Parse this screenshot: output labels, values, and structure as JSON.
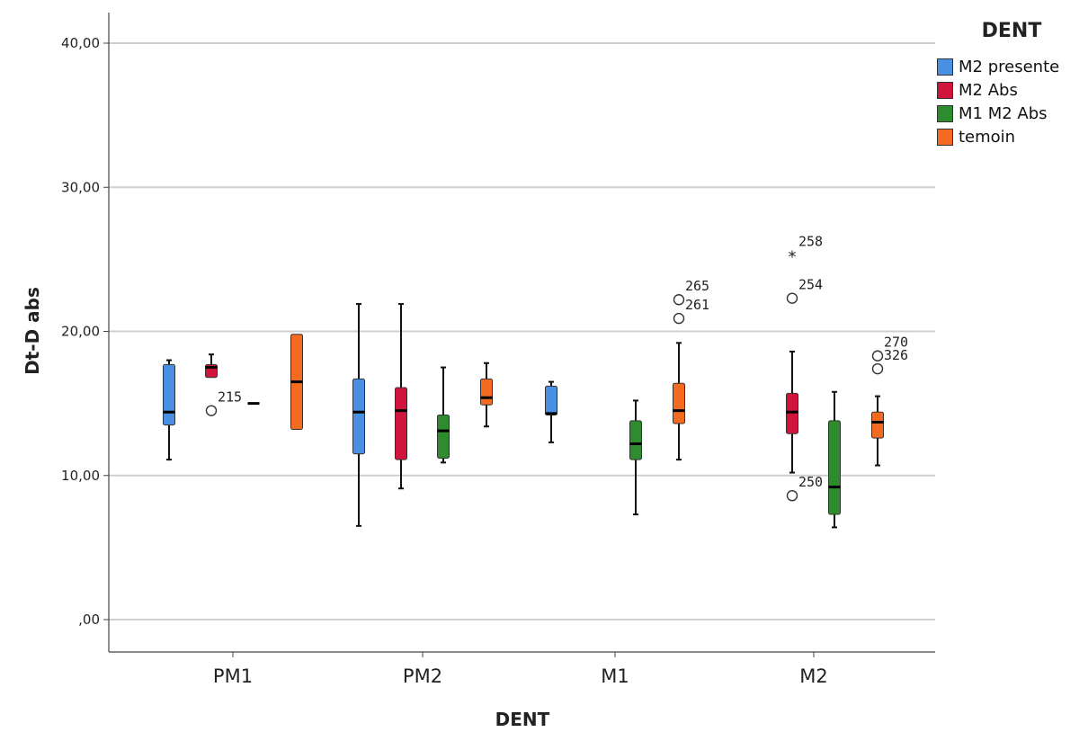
{
  "chart_data": {
    "type": "boxplot",
    "xlabel": "DENT",
    "ylabel": "Dt-D abs",
    "ylim": [
      0,
      40
    ],
    "yticks": [
      {
        "value": 0,
        "label": ",00"
      },
      {
        "value": 10,
        "label": "10,00"
      },
      {
        "value": 20,
        "label": "20,00"
      },
      {
        "value": 30,
        "label": "30,00"
      },
      {
        "value": 40,
        "label": "40,00"
      }
    ],
    "grid": "horizontal",
    "legend_position": "top-right",
    "legend_title": "DENT",
    "categories": [
      "PM1",
      "PM2",
      "M1",
      "M2"
    ],
    "series": [
      {
        "name": "M2 presente",
        "color": "#4A90E2",
        "boxes": [
          {
            "category": "PM1",
            "min": 11.1,
            "q1": 13.5,
            "median": 14.4,
            "q3": 17.7,
            "max": 18.0,
            "outliers": []
          },
          {
            "category": "PM2",
            "min": 6.5,
            "q1": 11.5,
            "median": 14.4,
            "q3": 16.7,
            "max": 21.9,
            "outliers": []
          },
          {
            "category": "M1",
            "min": 12.3,
            "q1": 14.2,
            "median": 14.3,
            "q3": 16.2,
            "max": 16.5,
            "outliers": []
          },
          null
        ]
      },
      {
        "name": "M2 Abs",
        "color": "#D0143C",
        "boxes": [
          {
            "category": "PM1",
            "min": 16.8,
            "q1": 16.8,
            "median": 17.5,
            "q3": 17.7,
            "max": 18.4,
            "outliers": [
              {
                "value": 14.5,
                "label": "215",
                "symbol": "circle"
              }
            ]
          },
          {
            "category": "PM2",
            "min": 9.1,
            "q1": 11.1,
            "median": 14.5,
            "q3": 16.1,
            "max": 21.9,
            "outliers": []
          },
          null,
          {
            "category": "M2",
            "min": 10.2,
            "q1": 12.9,
            "median": 14.4,
            "q3": 15.7,
            "max": 18.6,
            "outliers": [
              {
                "value": 25.3,
                "label": "258",
                "symbol": "star"
              },
              {
                "value": 22.3,
                "label": "254",
                "symbol": "circle"
              },
              {
                "value": 8.6,
                "label": "250",
                "symbol": "circle"
              }
            ]
          }
        ]
      },
      {
        "name": "M1 M2 Abs",
        "color": "#2E8B2E",
        "boxes": [
          {
            "category": "PM1",
            "min": 15.0,
            "q1": 15.0,
            "median": 15.0,
            "q3": 15.0,
            "max": 15.0,
            "outliers": []
          },
          {
            "category": "PM2",
            "min": 10.9,
            "q1": 11.2,
            "median": 13.1,
            "q3": 14.2,
            "max": 17.5,
            "outliers": []
          },
          {
            "category": "M1",
            "min": 7.3,
            "q1": 11.1,
            "median": 12.2,
            "q3": 13.8,
            "max": 15.2,
            "outliers": []
          },
          {
            "category": "M2",
            "min": 6.4,
            "q1": 7.3,
            "median": 9.2,
            "q3": 13.8,
            "max": 15.8,
            "outliers": []
          }
        ]
      },
      {
        "name": "temoin",
        "color": "#F26B21",
        "boxes": [
          {
            "category": "PM1",
            "min": 13.2,
            "q1": 13.2,
            "median": 16.5,
            "q3": 19.8,
            "max": 19.8,
            "outliers": []
          },
          {
            "category": "PM2",
            "min": 13.4,
            "q1": 14.9,
            "median": 15.4,
            "q3": 16.7,
            "max": 17.8,
            "outliers": []
          },
          {
            "category": "M1",
            "min": 11.1,
            "q1": 13.6,
            "median": 14.5,
            "q3": 16.4,
            "max": 19.2,
            "outliers": [
              {
                "value": 22.2,
                "label": "265",
                "symbol": "circle"
              },
              {
                "value": 20.9,
                "label": "261",
                "symbol": "circle"
              }
            ]
          },
          {
            "category": "M2",
            "min": 10.7,
            "q1": 12.6,
            "median": 13.7,
            "q3": 14.4,
            "max": 15.5,
            "outliers": [
              {
                "value": 18.3,
                "label": "270",
                "symbol": "circle"
              },
              {
                "value": 17.4,
                "label": "326",
                "symbol": "circle"
              }
            ]
          }
        ]
      }
    ]
  }
}
